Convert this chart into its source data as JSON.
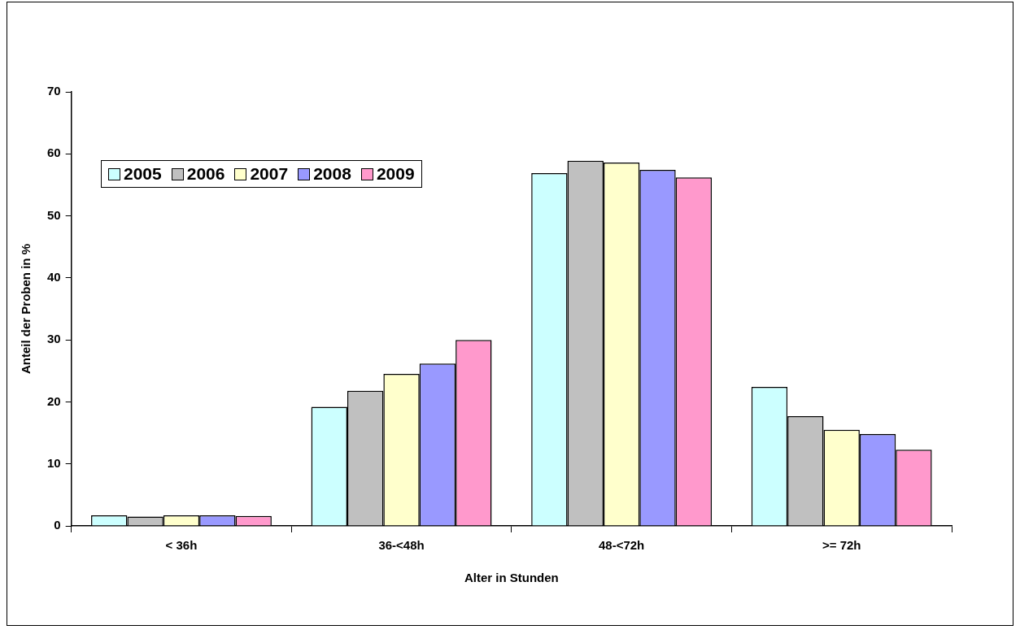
{
  "chart_data": {
    "type": "bar",
    "xlabel": "Alter in Stunden",
    "ylabel": "Anteil der Proben in %",
    "categories": [
      "< 36h",
      "36-<48h",
      "48-<72h",
      ">= 72h"
    ],
    "series": [
      {
        "name": "2005",
        "color": "#ccffff",
        "values": [
          1.7,
          19.2,
          56.9,
          22.4
        ]
      },
      {
        "name": "2006",
        "color": "#c0c0c0",
        "values": [
          1.5,
          21.8,
          58.9,
          17.7
        ]
      },
      {
        "name": "2007",
        "color": "#ffffcc",
        "values": [
          1.7,
          24.5,
          58.6,
          15.5
        ]
      },
      {
        "name": "2008",
        "color": "#9999ff",
        "values": [
          1.7,
          26.2,
          57.4,
          14.8
        ]
      },
      {
        "name": "2009",
        "color": "#ff99cc",
        "values": [
          1.6,
          30.0,
          56.2,
          12.3
        ]
      }
    ],
    "ylim": [
      0,
      70
    ],
    "yticks": [
      0,
      10,
      20,
      30,
      40,
      50,
      60,
      70
    ],
    "grid": false,
    "legend": "top left"
  }
}
